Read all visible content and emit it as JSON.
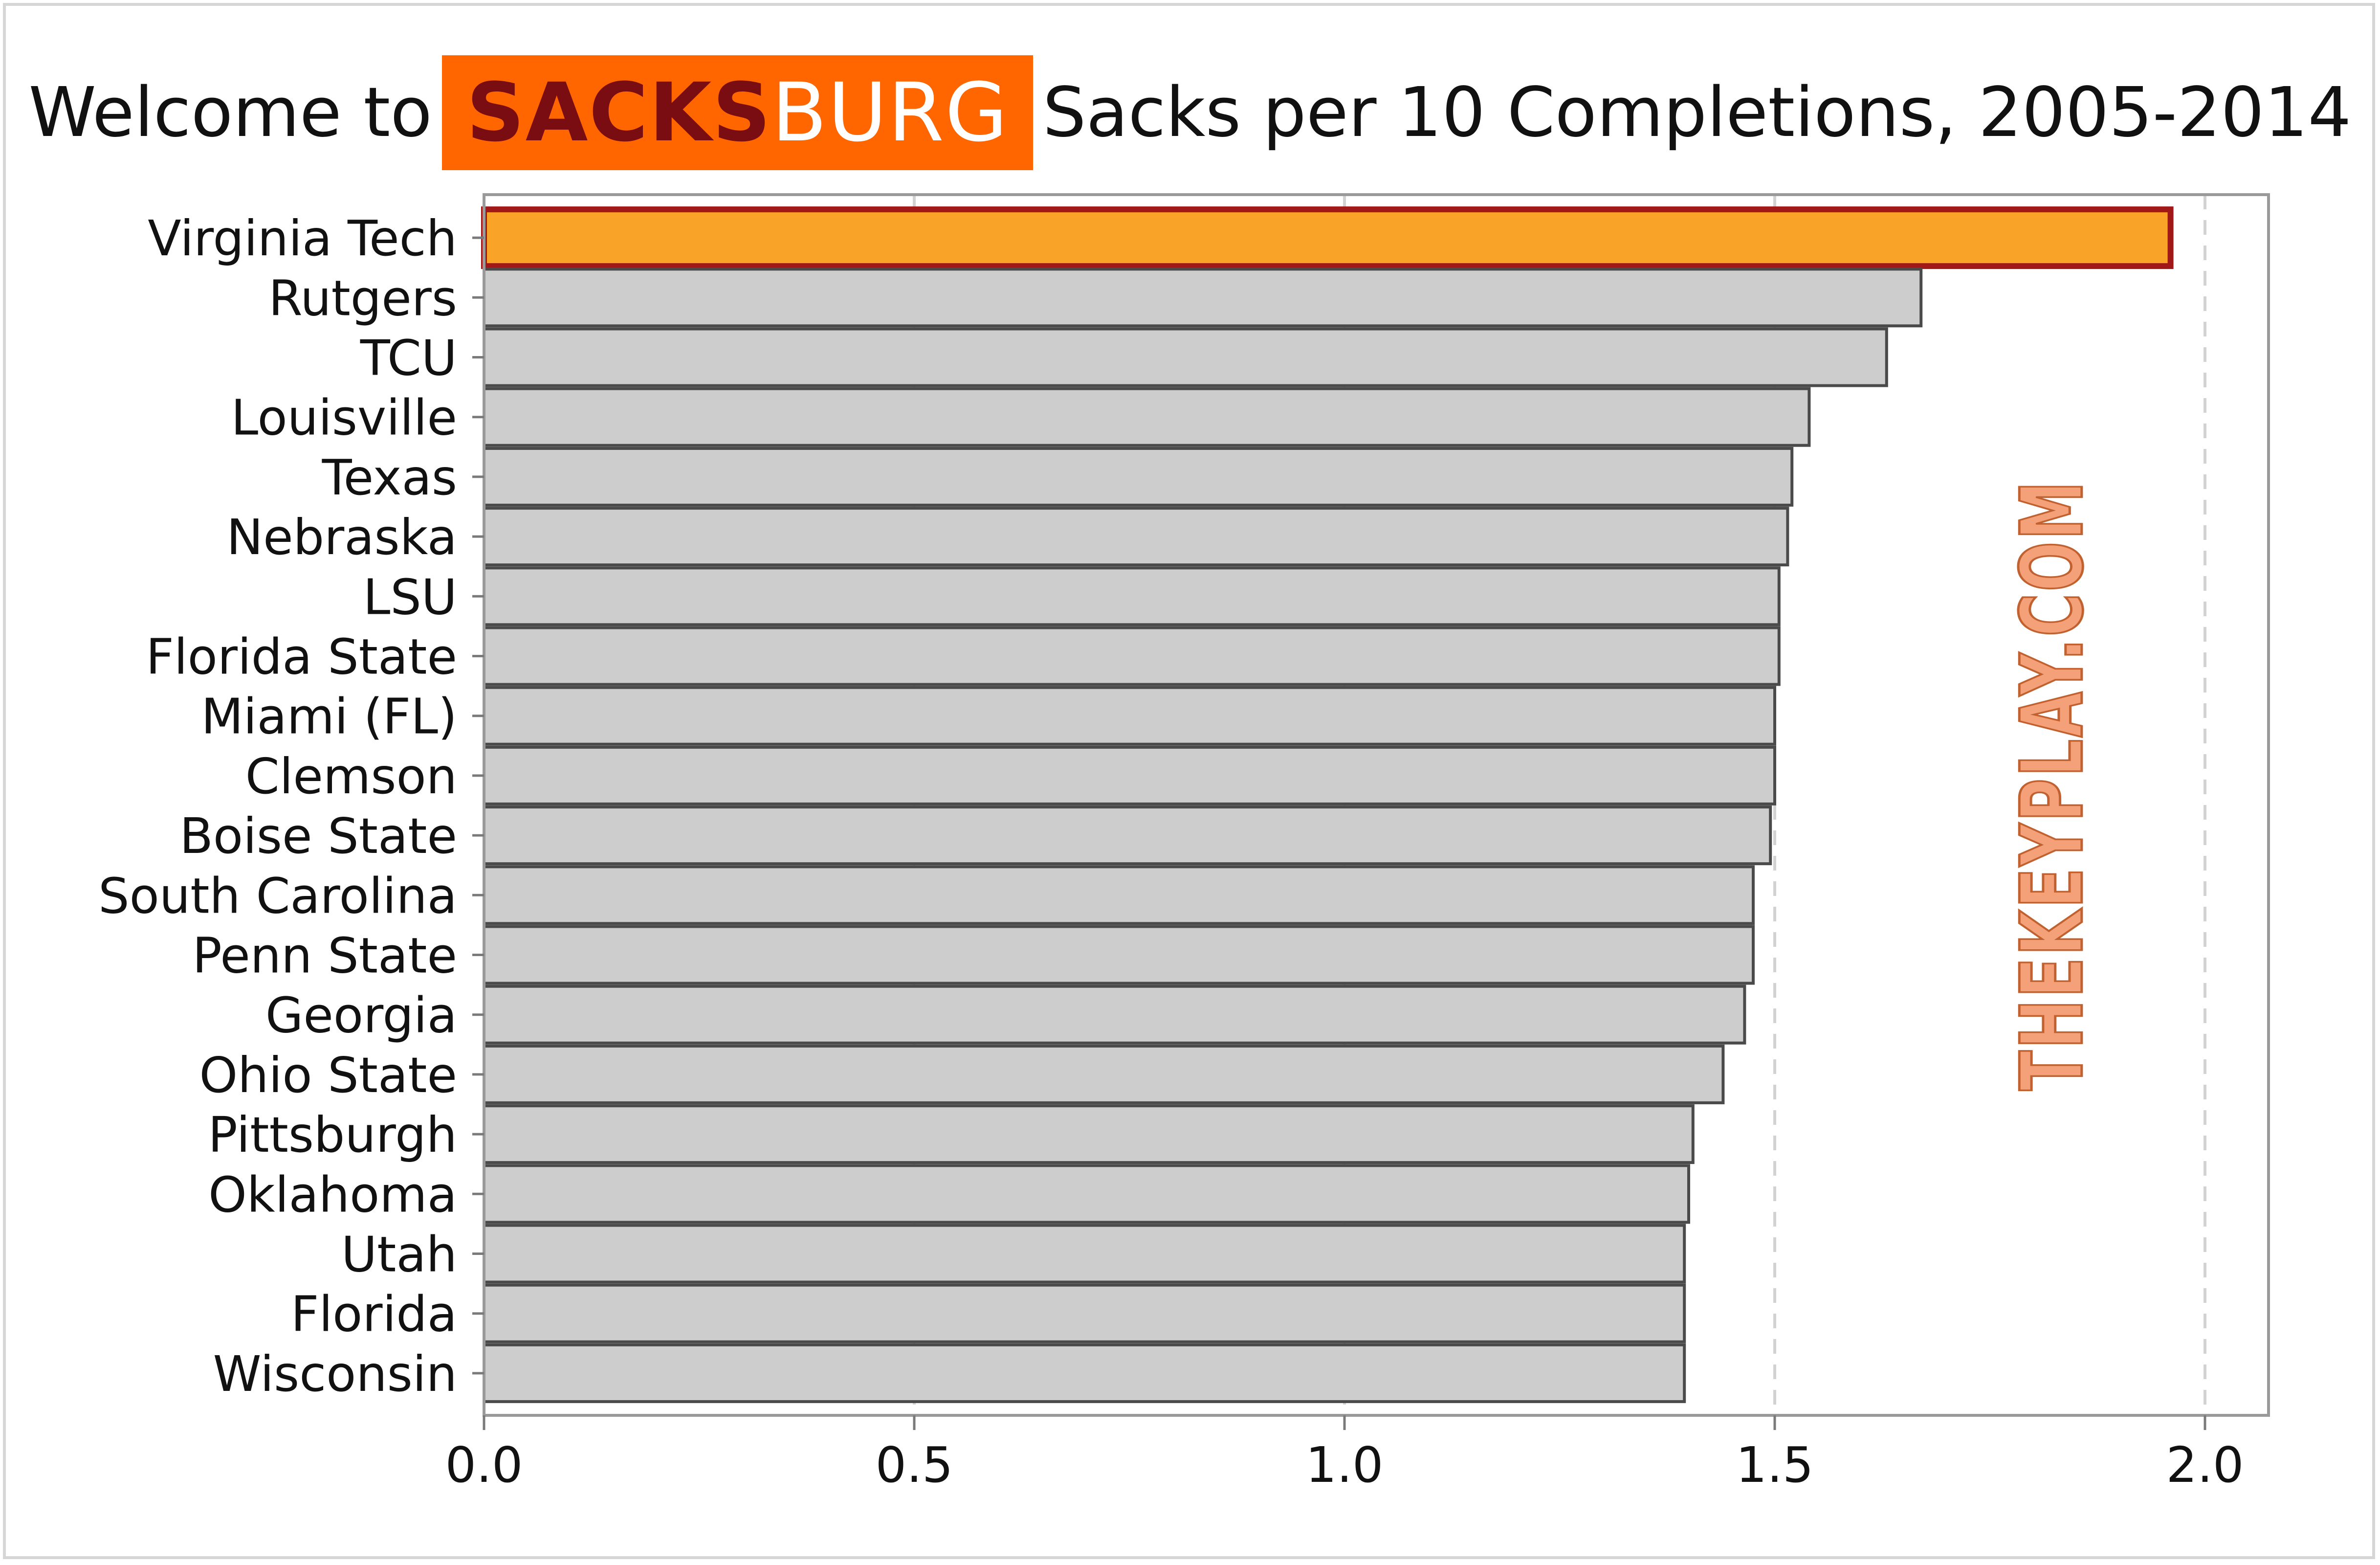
{
  "title": {
    "prefix": "Welcome to",
    "logo_part1": "SACKS",
    "logo_part2": "BURG",
    "main": "Sacks per 10 Completions, 2005-2014"
  },
  "watermark": "THEKEYPLAY.COM",
  "colors": {
    "highlight_fill": "#f9a328",
    "highlight_stroke": "#a01818",
    "bar_fill": "#cdcdcd",
    "bar_stroke": "#4a4a4a",
    "logo_bg": "#ff6600",
    "logo_dark_text": "#7a0d12",
    "watermark": "#f4a17a"
  },
  "chart_data": {
    "type": "bar",
    "orientation": "horizontal",
    "categories": [
      "Virginia Tech",
      "Rutgers",
      "TCU",
      "Louisville",
      "Texas",
      "Nebraska",
      "LSU",
      "Florida State",
      "Miami (FL)",
      "Clemson",
      "Boise State",
      "South Carolina",
      "Penn State",
      "Georgia",
      "Ohio State",
      "Pittsburgh",
      "Oklahoma",
      "Utah",
      "Florida",
      "Wisconsin"
    ],
    "values": [
      1.96,
      1.67,
      1.63,
      1.54,
      1.52,
      1.515,
      1.505,
      1.505,
      1.5,
      1.5,
      1.495,
      1.475,
      1.475,
      1.465,
      1.44,
      1.405,
      1.4,
      1.395,
      1.395,
      1.395
    ],
    "highlight": "Virginia Tech",
    "xlim": [
      0,
      2.08
    ],
    "xticks": [
      0.0,
      0.5,
      1.0,
      1.5,
      2.0
    ],
    "xtick_labels": [
      "0.0",
      "0.5",
      "1.0",
      "1.5",
      "2.0"
    ],
    "grid": "vertical dashed",
    "xlabel": "",
    "ylabel": ""
  }
}
